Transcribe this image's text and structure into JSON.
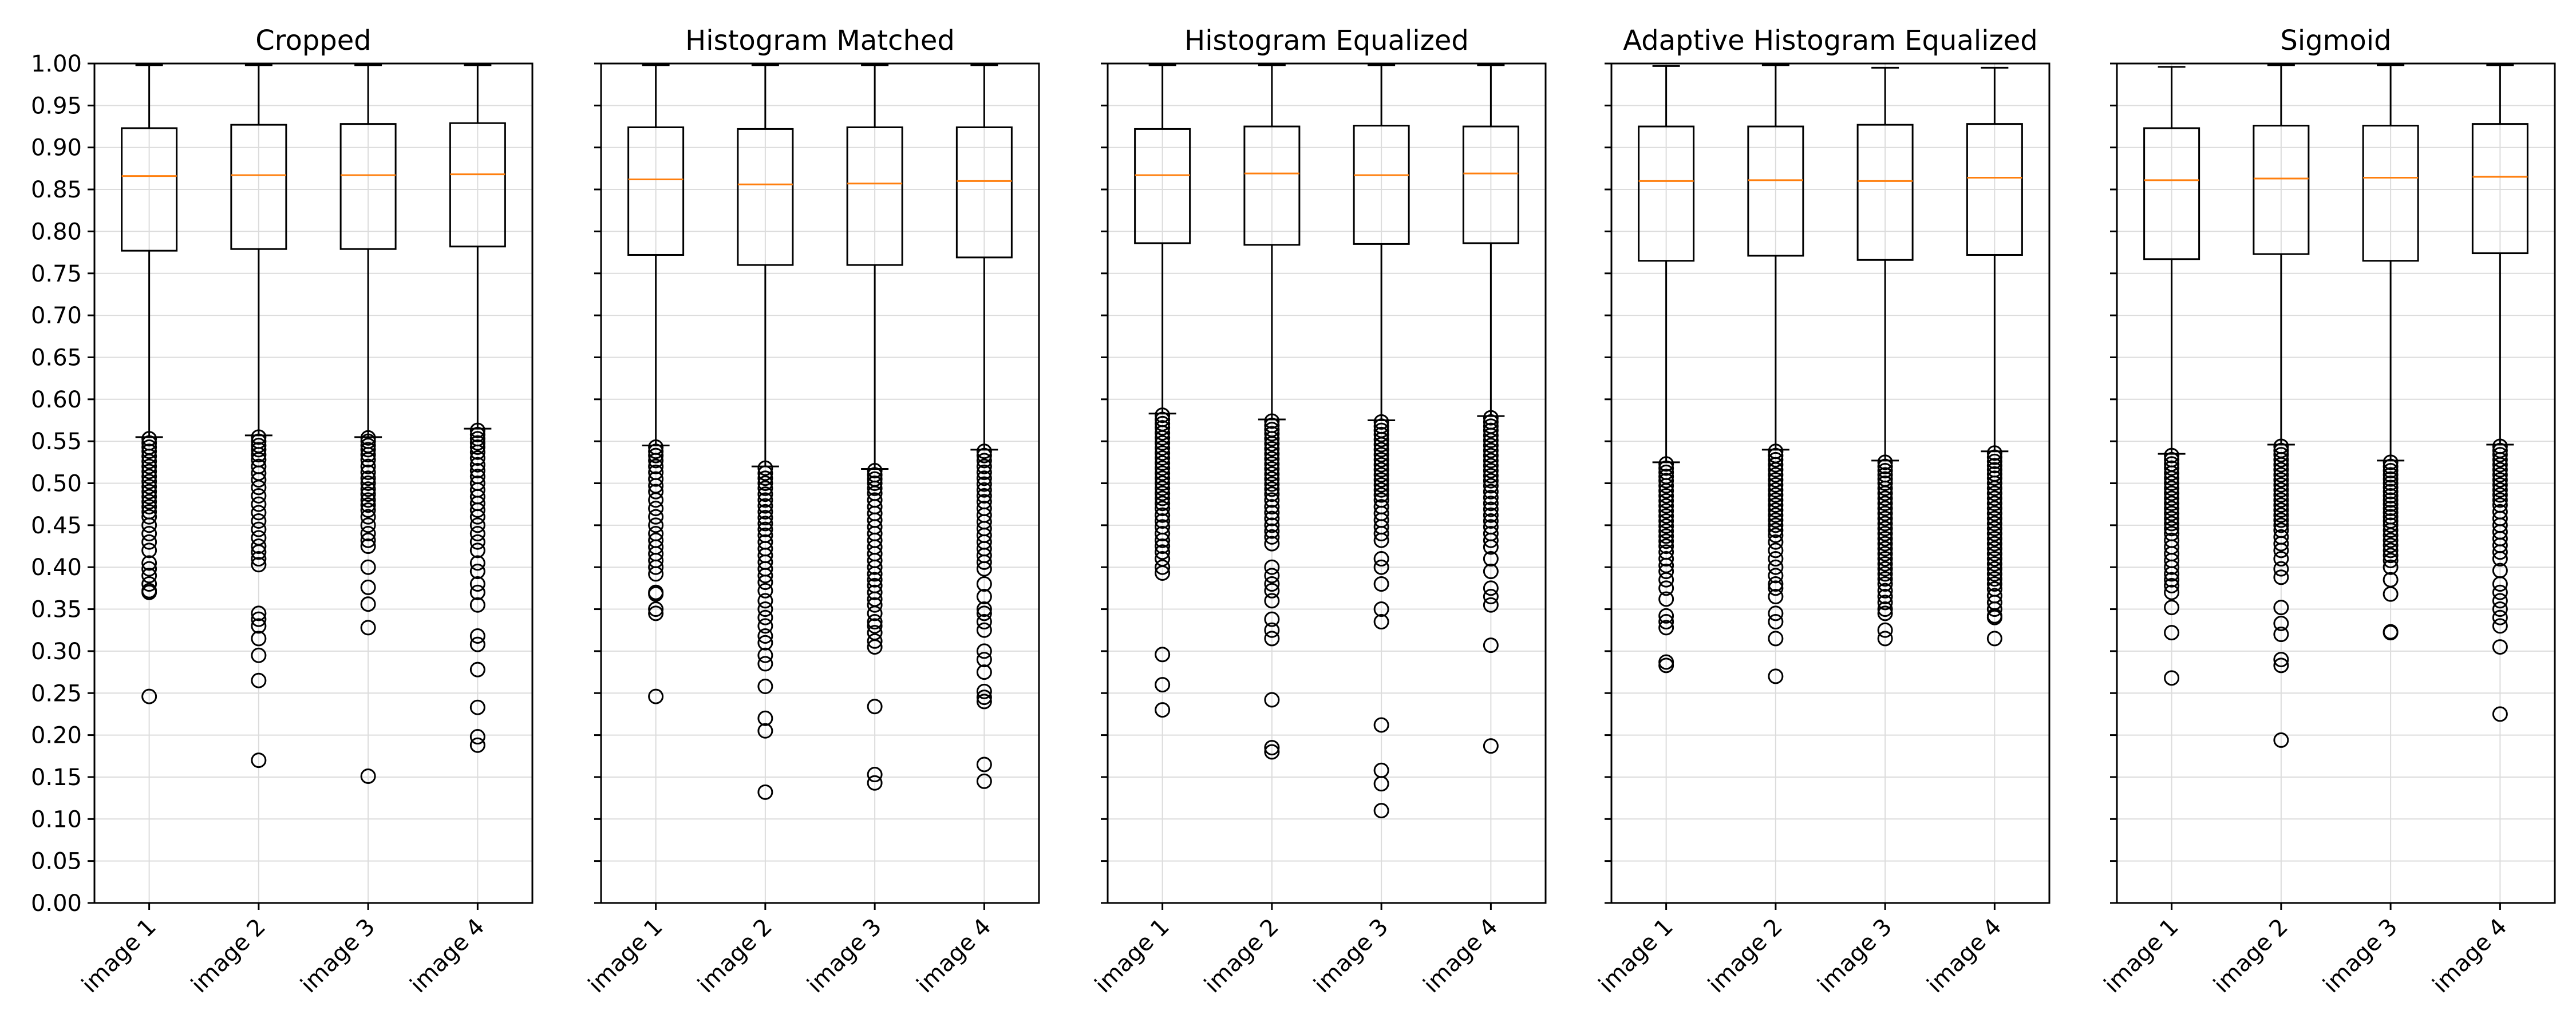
{
  "chart_data": {
    "type": "box",
    "shared_y_axis": true,
    "ylim": [
      0.0,
      1.0
    ],
    "y_ticks": [
      "0.00",
      "0.05",
      "0.10",
      "0.15",
      "0.20",
      "0.25",
      "0.30",
      "0.35",
      "0.40",
      "0.45",
      "0.50",
      "0.55",
      "0.60",
      "0.65",
      "0.70",
      "0.75",
      "0.80",
      "0.85",
      "0.90",
      "0.95",
      "1.00"
    ],
    "grid": true,
    "colors": {
      "box": "#000000",
      "median": "#ff7f0e",
      "grid": "#dcdcdc"
    },
    "panels": [
      {
        "title": "Cropped",
        "categories": [
          "image 1",
          "image 2",
          "image 3",
          "image 4"
        ],
        "boxes": [
          {
            "whisker_low": 0.555,
            "q1": 0.777,
            "median": 0.866,
            "q3": 0.923,
            "whisker_high": 0.998,
            "outliers": [
              0.553,
              0.548,
              0.543,
              0.538,
              0.532,
              0.526,
              0.52,
              0.514,
              0.508,
              0.502,
              0.496,
              0.49,
              0.484,
              0.478,
              0.472,
              0.466,
              0.46,
              0.45,
              0.44,
              0.43,
              0.42,
              0.405,
              0.398,
              0.39,
              0.38,
              0.372,
              0.37,
              0.246
            ]
          },
          {
            "whisker_low": 0.557,
            "q1": 0.779,
            "median": 0.867,
            "q3": 0.927,
            "whisker_high": 0.998,
            "outliers": [
              0.555,
              0.55,
              0.545,
              0.54,
              0.534,
              0.528,
              0.52,
              0.512,
              0.504,
              0.495,
              0.485,
              0.475,
              0.465,
              0.455,
              0.445,
              0.435,
              0.425,
              0.418,
              0.41,
              0.403,
              0.345,
              0.338,
              0.33,
              0.315,
              0.295,
              0.265,
              0.17
            ]
          },
          {
            "whisker_low": 0.555,
            "q1": 0.779,
            "median": 0.867,
            "q3": 0.928,
            "whisker_high": 0.998,
            "outliers": [
              0.554,
              0.55,
              0.545,
              0.54,
              0.534,
              0.528,
              0.52,
              0.513,
              0.506,
              0.5,
              0.493,
              0.487,
              0.48,
              0.474,
              0.468,
              0.46,
              0.45,
              0.44,
              0.432,
              0.425,
              0.4,
              0.376,
              0.356,
              0.328,
              0.151
            ]
          },
          {
            "whisker_low": 0.565,
            "q1": 0.782,
            "median": 0.868,
            "q3": 0.929,
            "whisker_high": 0.998,
            "outliers": [
              0.563,
              0.558,
              0.553,
              0.548,
              0.543,
              0.537,
              0.53,
              0.522,
              0.515,
              0.508,
              0.5,
              0.492,
              0.484,
              0.476,
              0.468,
              0.46,
              0.45,
              0.44,
              0.43,
              0.42,
              0.405,
              0.395,
              0.38,
              0.37,
              0.355,
              0.318,
              0.308,
              0.278,
              0.233,
              0.198,
              0.188
            ]
          }
        ]
      },
      {
        "title": "Histogram Matched",
        "categories": [
          "image 1",
          "image 2",
          "image 3",
          "image 4"
        ],
        "boxes": [
          {
            "whisker_low": 0.545,
            "q1": 0.772,
            "median": 0.862,
            "q3": 0.924,
            "whisker_high": 0.998,
            "outliers": [
              0.543,
              0.538,
              0.533,
              0.527,
              0.52,
              0.513,
              0.505,
              0.497,
              0.49,
              0.48,
              0.47,
              0.46,
              0.45,
              0.44,
              0.432,
              0.424,
              0.416,
              0.408,
              0.4,
              0.392,
              0.37,
              0.368,
              0.35,
              0.345,
              0.246
            ]
          },
          {
            "whisker_low": 0.52,
            "q1": 0.76,
            "median": 0.856,
            "q3": 0.922,
            "whisker_high": 0.998,
            "outliers": [
              0.518,
              0.512,
              0.506,
              0.5,
              0.494,
              0.487,
              0.48,
              0.473,
              0.466,
              0.459,
              0.452,
              0.445,
              0.438,
              0.43,
              0.422,
              0.414,
              0.406,
              0.398,
              0.39,
              0.382,
              0.372,
              0.36,
              0.35,
              0.34,
              0.33,
              0.318,
              0.31,
              0.295,
              0.285,
              0.258,
              0.22,
              0.205,
              0.132
            ]
          },
          {
            "whisker_low": 0.517,
            "q1": 0.76,
            "median": 0.857,
            "q3": 0.924,
            "whisker_high": 0.998,
            "outliers": [
              0.515,
              0.51,
              0.505,
              0.5,
              0.494,
              0.488,
              0.48,
              0.472,
              0.464,
              0.456,
              0.448,
              0.44,
              0.432,
              0.424,
              0.416,
              0.408,
              0.4,
              0.392,
              0.385,
              0.378,
              0.37,
              0.362,
              0.355,
              0.345,
              0.335,
              0.33,
              0.322,
              0.312,
              0.305,
              0.234,
              0.153,
              0.143
            ]
          },
          {
            "whisker_low": 0.54,
            "q1": 0.769,
            "median": 0.86,
            "q3": 0.924,
            "whisker_high": 0.998,
            "outliers": [
              0.538,
              0.533,
              0.527,
              0.52,
              0.513,
              0.506,
              0.499,
              0.492,
              0.485,
              0.478,
              0.47,
              0.462,
              0.454,
              0.446,
              0.438,
              0.43,
              0.422,
              0.414,
              0.406,
              0.398,
              0.38,
              0.365,
              0.35,
              0.345,
              0.335,
              0.325,
              0.3,
              0.29,
              0.275,
              0.252,
              0.245,
              0.24,
              0.165,
              0.145
            ]
          }
        ]
      },
      {
        "title": "Histogram Equalized",
        "categories": [
          "image 1",
          "image 2",
          "image 3",
          "image 4"
        ],
        "boxes": [
          {
            "whisker_low": 0.583,
            "q1": 0.786,
            "median": 0.867,
            "q3": 0.922,
            "whisker_high": 0.998,
            "outliers": [
              0.581,
              0.576,
              0.571,
              0.566,
              0.56,
              0.554,
              0.548,
              0.542,
              0.536,
              0.53,
              0.524,
              0.518,
              0.512,
              0.506,
              0.5,
              0.494,
              0.488,
              0.482,
              0.476,
              0.47,
              0.462,
              0.455,
              0.448,
              0.44,
              0.432,
              0.425,
              0.418,
              0.41,
              0.4,
              0.393,
              0.296,
              0.26,
              0.23
            ]
          },
          {
            "whisker_low": 0.576,
            "q1": 0.784,
            "median": 0.869,
            "q3": 0.925,
            "whisker_high": 0.998,
            "outliers": [
              0.574,
              0.569,
              0.564,
              0.559,
              0.553,
              0.547,
              0.541,
              0.535,
              0.529,
              0.523,
              0.517,
              0.511,
              0.505,
              0.499,
              0.493,
              0.487,
              0.48,
              0.472,
              0.465,
              0.458,
              0.45,
              0.443,
              0.436,
              0.428,
              0.4,
              0.39,
              0.38,
              0.372,
              0.36,
              0.338,
              0.325,
              0.315,
              0.242,
              0.185,
              0.18
            ]
          },
          {
            "whisker_low": 0.575,
            "q1": 0.785,
            "median": 0.867,
            "q3": 0.926,
            "whisker_high": 0.998,
            "outliers": [
              0.573,
              0.568,
              0.563,
              0.558,
              0.552,
              0.546,
              0.54,
              0.534,
              0.528,
              0.522,
              0.516,
              0.51,
              0.504,
              0.498,
              0.492,
              0.486,
              0.48,
              0.472,
              0.464,
              0.456,
              0.448,
              0.44,
              0.432,
              0.41,
              0.4,
              0.38,
              0.35,
              0.335,
              0.212,
              0.158,
              0.142,
              0.11
            ]
          },
          {
            "whisker_low": 0.58,
            "q1": 0.786,
            "median": 0.869,
            "q3": 0.925,
            "whisker_high": 0.998,
            "outliers": [
              0.578,
              0.573,
              0.568,
              0.563,
              0.557,
              0.551,
              0.545,
              0.539,
              0.533,
              0.527,
              0.521,
              0.515,
              0.509,
              0.503,
              0.497,
              0.49,
              0.483,
              0.476,
              0.469,
              0.462,
              0.455,
              0.448,
              0.44,
              0.432,
              0.424,
              0.41,
              0.395,
              0.375,
              0.365,
              0.355,
              0.307,
              0.187
            ]
          }
        ]
      },
      {
        "title": "Adaptive Histogram Equalized",
        "categories": [
          "image 1",
          "image 2",
          "image 3",
          "image 4"
        ],
        "boxes": [
          {
            "whisker_low": 0.525,
            "q1": 0.765,
            "median": 0.86,
            "q3": 0.925,
            "whisker_high": 0.997,
            "outliers": [
              0.523,
              0.518,
              0.513,
              0.508,
              0.503,
              0.497,
              0.491,
              0.485,
              0.479,
              0.473,
              0.467,
              0.461,
              0.455,
              0.449,
              0.443,
              0.437,
              0.431,
              0.425,
              0.418,
              0.41,
              0.402,
              0.395,
              0.385,
              0.375,
              0.362,
              0.342,
              0.335,
              0.328,
              0.287,
              0.283
            ]
          },
          {
            "whisker_low": 0.54,
            "q1": 0.771,
            "median": 0.861,
            "q3": 0.925,
            "whisker_high": 0.998,
            "outliers": [
              0.538,
              0.533,
              0.528,
              0.522,
              0.516,
              0.51,
              0.504,
              0.498,
              0.492,
              0.486,
              0.48,
              0.474,
              0.468,
              0.462,
              0.456,
              0.45,
              0.444,
              0.438,
              0.43,
              0.42,
              0.41,
              0.4,
              0.39,
              0.38,
              0.375,
              0.365,
              0.345,
              0.335,
              0.315,
              0.27
            ]
          },
          {
            "whisker_low": 0.527,
            "q1": 0.766,
            "median": 0.86,
            "q3": 0.927,
            "whisker_high": 0.995,
            "outliers": [
              0.525,
              0.52,
              0.515,
              0.51,
              0.505,
              0.5,
              0.494,
              0.488,
              0.482,
              0.476,
              0.47,
              0.464,
              0.458,
              0.452,
              0.446,
              0.44,
              0.434,
              0.428,
              0.422,
              0.416,
              0.41,
              0.404,
              0.398,
              0.392,
              0.386,
              0.38,
              0.372,
              0.365,
              0.358,
              0.35,
              0.345,
              0.325,
              0.315
            ]
          },
          {
            "whisker_low": 0.538,
            "q1": 0.772,
            "median": 0.864,
            "q3": 0.928,
            "whisker_high": 0.995,
            "outliers": [
              0.536,
              0.531,
              0.526,
              0.521,
              0.516,
              0.511,
              0.506,
              0.5,
              0.494,
              0.488,
              0.482,
              0.476,
              0.47,
              0.464,
              0.458,
              0.452,
              0.446,
              0.44,
              0.434,
              0.428,
              0.422,
              0.416,
              0.41,
              0.404,
              0.398,
              0.392,
              0.386,
              0.38,
              0.374,
              0.366,
              0.358,
              0.35,
              0.342,
              0.34,
              0.315
            ]
          }
        ]
      },
      {
        "title": "Sigmoid",
        "categories": [
          "image 1",
          "image 2",
          "image 3",
          "image 4"
        ],
        "boxes": [
          {
            "whisker_low": 0.535,
            "q1": 0.767,
            "median": 0.861,
            "q3": 0.923,
            "whisker_high": 0.996,
            "outliers": [
              0.533,
              0.528,
              0.523,
              0.518,
              0.512,
              0.506,
              0.5,
              0.494,
              0.488,
              0.482,
              0.476,
              0.47,
              0.464,
              0.458,
              0.452,
              0.446,
              0.44,
              0.432,
              0.424,
              0.416,
              0.408,
              0.4,
              0.392,
              0.385,
              0.378,
              0.37,
              0.352,
              0.322,
              0.268
            ]
          },
          {
            "whisker_low": 0.546,
            "q1": 0.773,
            "median": 0.863,
            "q3": 0.926,
            "whisker_high": 0.998,
            "outliers": [
              0.544,
              0.539,
              0.534,
              0.528,
              0.522,
              0.516,
              0.51,
              0.504,
              0.498,
              0.492,
              0.486,
              0.48,
              0.474,
              0.468,
              0.462,
              0.456,
              0.45,
              0.444,
              0.436,
              0.428,
              0.42,
              0.41,
              0.398,
              0.388,
              0.352,
              0.333,
              0.32,
              0.29,
              0.283,
              0.194
            ]
          },
          {
            "whisker_low": 0.527,
            "q1": 0.765,
            "median": 0.864,
            "q3": 0.926,
            "whisker_high": 0.998,
            "outliers": [
              0.525,
              0.52,
              0.515,
              0.51,
              0.505,
              0.5,
              0.495,
              0.49,
              0.485,
              0.48,
              0.475,
              0.47,
              0.465,
              0.46,
              0.455,
              0.45,
              0.444,
              0.438,
              0.432,
              0.426,
              0.42,
              0.414,
              0.408,
              0.4,
              0.385,
              0.368,
              0.323,
              0.322
            ]
          },
          {
            "whisker_low": 0.546,
            "q1": 0.774,
            "median": 0.865,
            "q3": 0.928,
            "whisker_high": 0.998,
            "outliers": [
              0.544,
              0.539,
              0.534,
              0.528,
              0.522,
              0.516,
              0.51,
              0.504,
              0.498,
              0.492,
              0.486,
              0.48,
              0.474,
              0.466,
              0.458,
              0.45,
              0.442,
              0.434,
              0.426,
              0.418,
              0.41,
              0.396,
              0.38,
              0.37,
              0.36,
              0.35,
              0.34,
              0.33,
              0.305,
              0.225
            ]
          }
        ]
      }
    ]
  }
}
